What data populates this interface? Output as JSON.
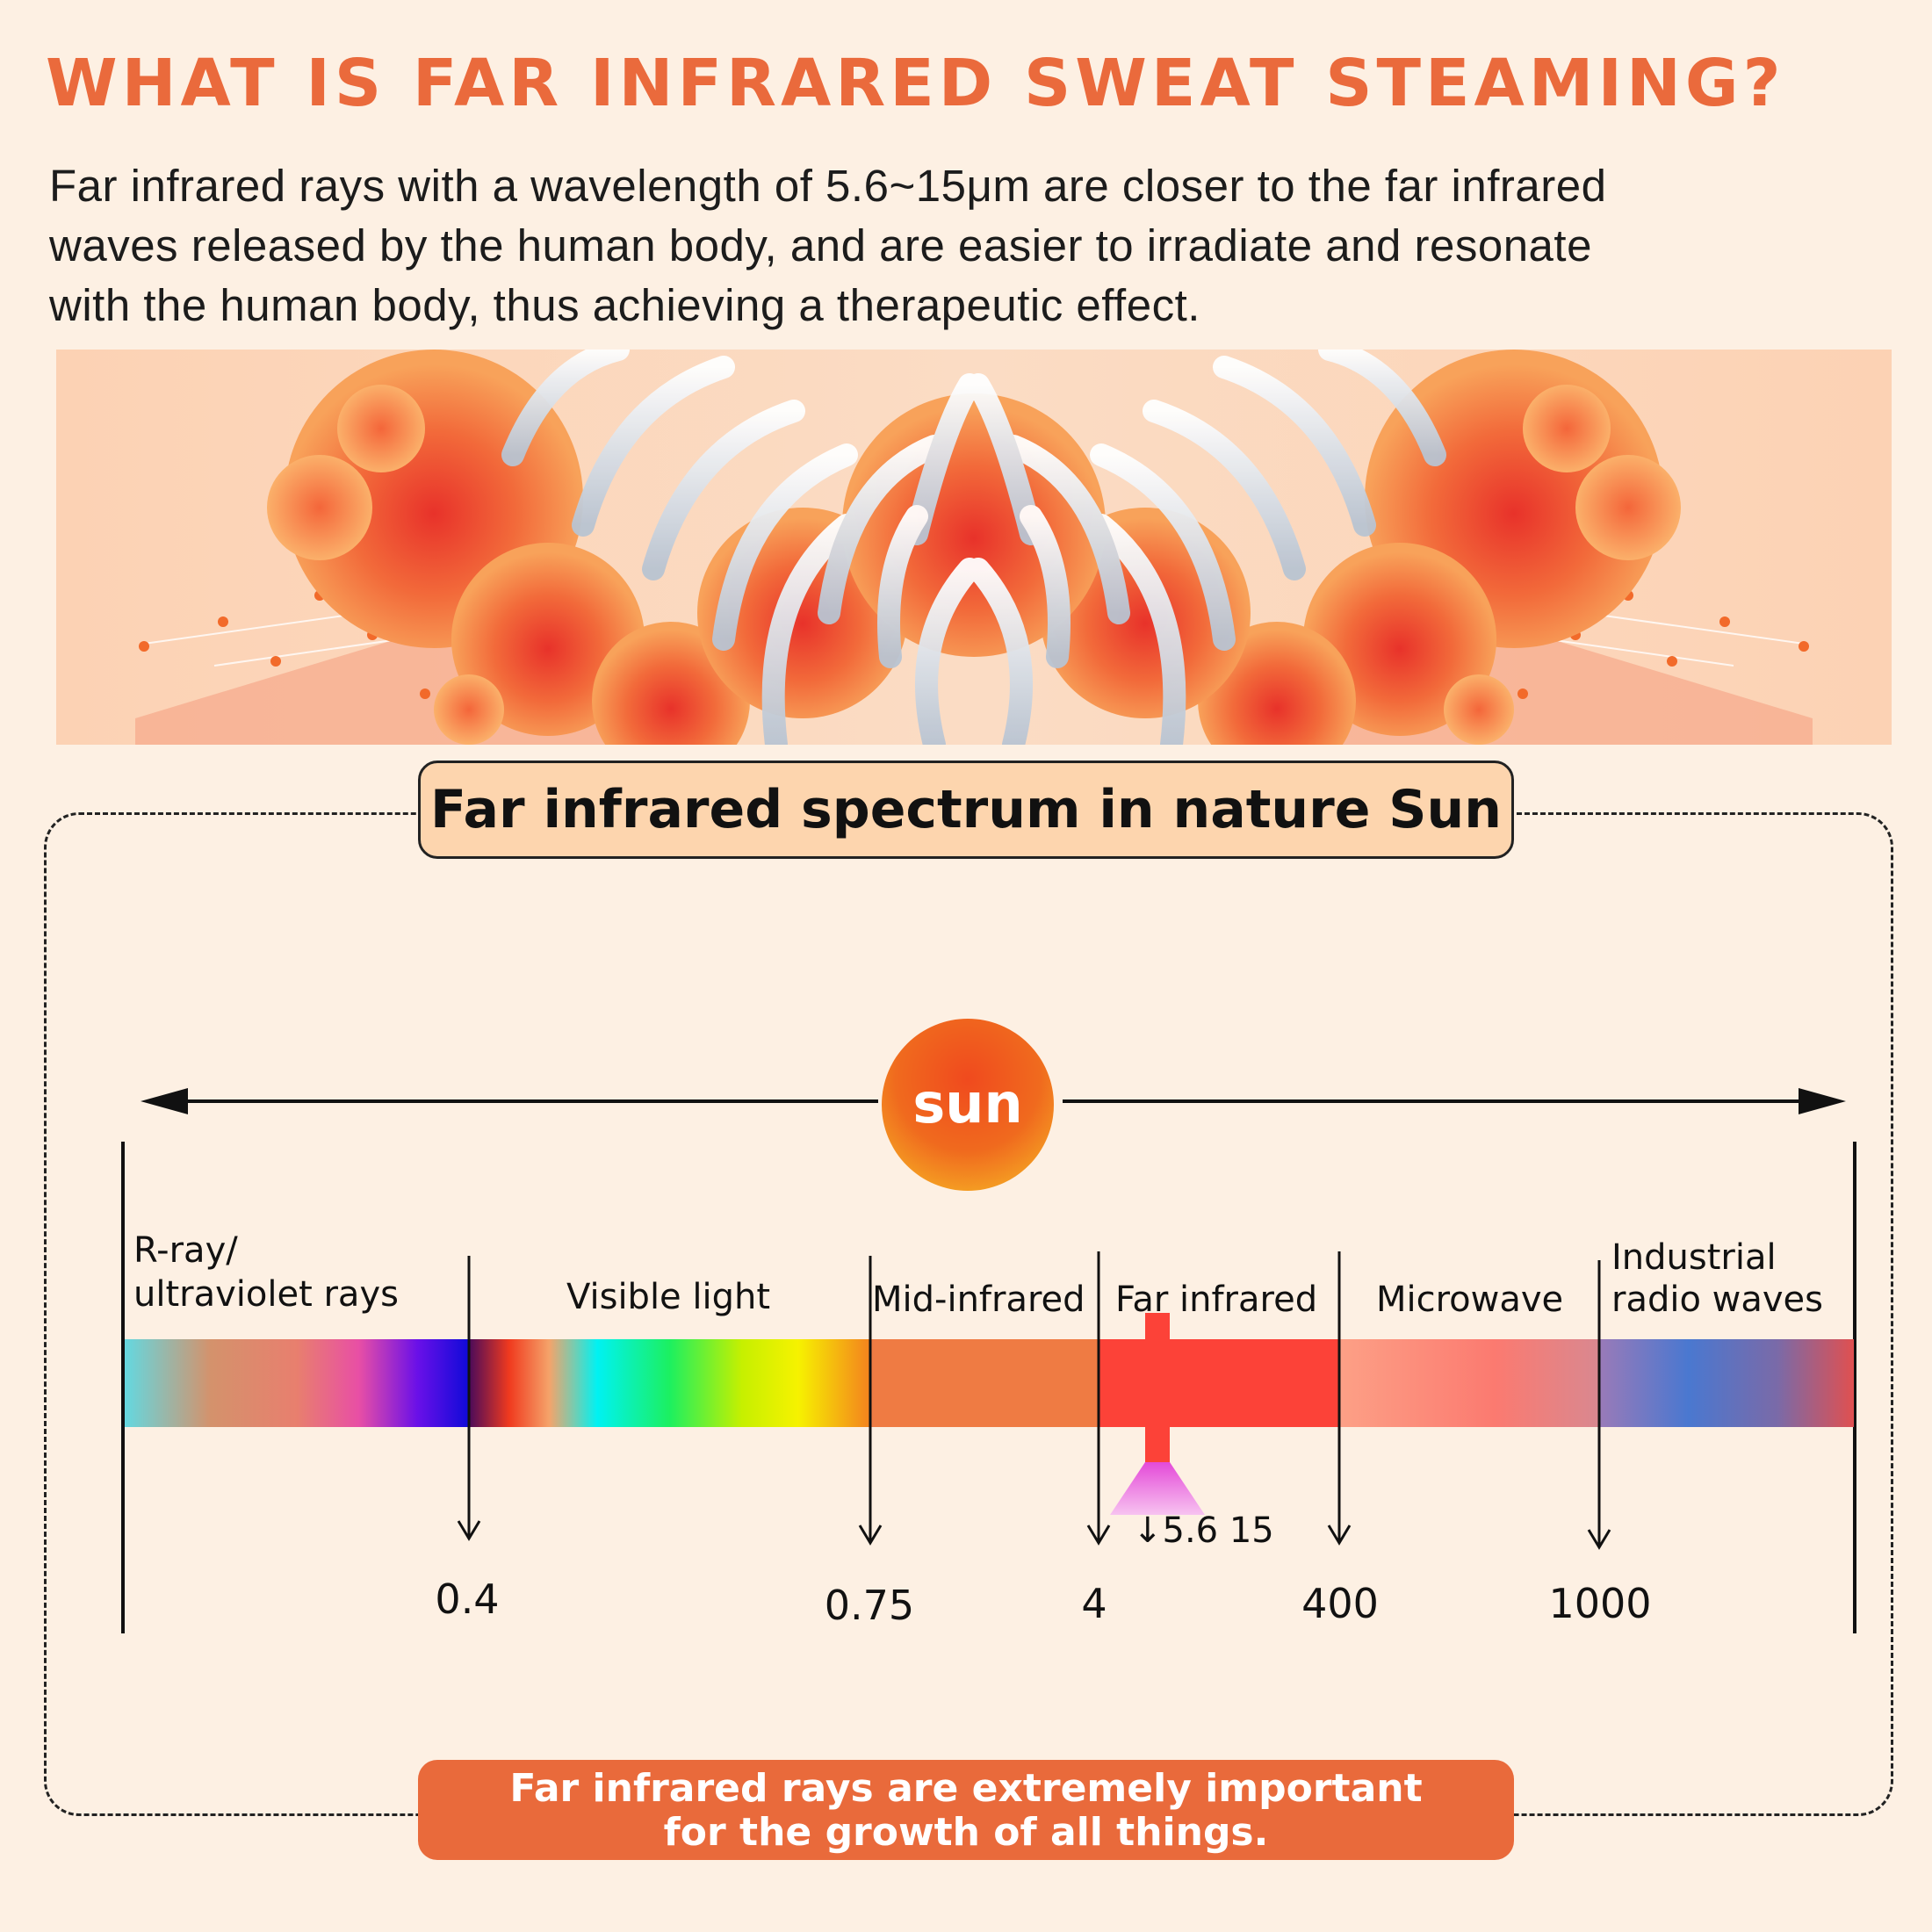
{
  "title": "WHAT IS FAR INFRARED SWEAT STEAMING?",
  "intro": {
    "line1": "Far infrared rays with a wavelength of 5.6~15μm are closer to the far infrared",
    "line2": "waves released by the human body, and are easier to irradiate and resonate",
    "line3": "with the human body, thus achieving a therapeutic effect."
  },
  "section_title": "Far infrared spectrum in nature Sun",
  "sun_label": "sun",
  "bands": {
    "uv": [
      "R-ray/",
      "ultraviolet rays"
    ],
    "visible": "Visible light",
    "mid": "Mid-infrared",
    "far": "Far infrared",
    "microwave": "Microwave",
    "radio": [
      "Industrial",
      "radio waves"
    ]
  },
  "marks": {
    "v04": "0.4",
    "v075": "0.75",
    "v4": "4",
    "v400": "400",
    "v1000": "1000",
    "range": "↓5.6 15"
  },
  "footer": {
    "line1": "Far infrared rays are extremely important",
    "line2": "for the growth of all things."
  },
  "colors": {
    "title": "#ea6a3c",
    "background": "#fdf0e3",
    "far_infrared": "#fc4238",
    "mid_infrared": "#ef7b43",
    "footer_pill": "#e96a3b",
    "section_pill": "#fdd5ae"
  }
}
